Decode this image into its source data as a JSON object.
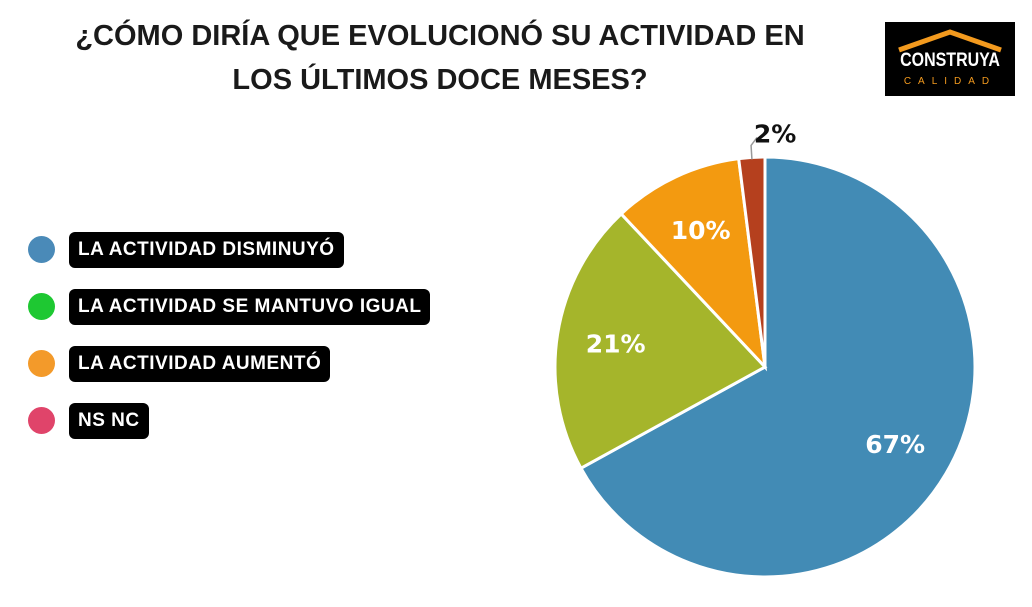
{
  "title_line1": "¿CÓMO DIRÍA QUE EVOLUCIONÓ SU ACTIVIDAD EN",
  "title_line2": "LOS ÚLTIMOS DOCE MESES?",
  "logo": {
    "line1": "CONSTRUYA",
    "line2": "CALIDAD",
    "roof_color": "#f39a1e"
  },
  "legend": [
    {
      "label": "LA ACTIVIDAD DISMINUYÓ",
      "color": "#4a8ab8"
    },
    {
      "label": "LA ACTIVIDAD SE MANTUVO IGUAL",
      "color": "#1ec832"
    },
    {
      "label": "LA ACTIVIDAD AUMENTÓ",
      "color": "#f39a2a"
    },
    {
      "label": "NS NC",
      "color": "#e0446a"
    }
  ],
  "chart_data": {
    "type": "pie",
    "start": "top",
    "direction": "clockwise",
    "slices": [
      {
        "legend": "LA ACTIVIDAD DISMINUYÓ",
        "value": 67,
        "label": "67%",
        "color": "#428bb5"
      },
      {
        "legend": "LA ACTIVIDAD SE MANTUVO IGUAL",
        "value": 21,
        "label": "21%",
        "color": "#a5b52b"
      },
      {
        "legend": "LA ACTIVIDAD AUMENTÓ",
        "value": 10,
        "label": "10%",
        "color": "#f39a10"
      },
      {
        "legend": "NS NC",
        "value": 2,
        "label": "2%",
        "color": "#b5401e"
      }
    ]
  }
}
